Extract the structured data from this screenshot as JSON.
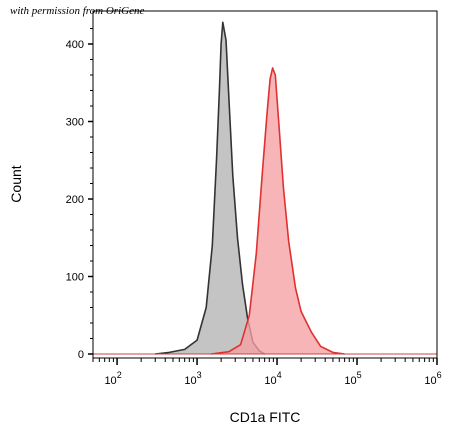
{
  "watermark": "with permission from OriGene",
  "chart_data": {
    "type": "area",
    "title": "",
    "xlabel": "CD1a FITC",
    "ylabel": "Count",
    "x_scale": "log",
    "xlim": [
      50,
      1000000
    ],
    "ylim": [
      0,
      440
    ],
    "x_ticks": [
      {
        "value": 100,
        "mantissa": "10",
        "exp": "2"
      },
      {
        "value": 1000,
        "mantissa": "10",
        "exp": "3"
      },
      {
        "value": 10000,
        "mantissa": "10",
        "exp": "4"
      },
      {
        "value": 100000,
        "mantissa": "10",
        "exp": "5"
      },
      {
        "value": 1000000,
        "mantissa": "10",
        "exp": "6"
      }
    ],
    "y_ticks": [
      0,
      100,
      200,
      300,
      400
    ],
    "grid": false,
    "series": [
      {
        "color": "#808080",
        "fill": "#b4b4b4",
        "stroke": "#333333",
        "points": [
          [
            300,
            0
          ],
          [
            450,
            2
          ],
          [
            700,
            6
          ],
          [
            1000,
            18
          ],
          [
            1300,
            60
          ],
          [
            1550,
            140
          ],
          [
            1750,
            250
          ],
          [
            1900,
            340
          ],
          [
            2000,
            400
          ],
          [
            2100,
            428
          ],
          [
            2300,
            405
          ],
          [
            2500,
            330
          ],
          [
            2800,
            230
          ],
          [
            3200,
            150
          ],
          [
            3700,
            90
          ],
          [
            4300,
            45
          ],
          [
            5000,
            15
          ],
          [
            6000,
            4
          ],
          [
            7000,
            0
          ]
        ]
      },
      {
        "color": "#e83c3c",
        "fill": "#f6a0a4",
        "stroke": "#e03030",
        "points": [
          [
            1500,
            0
          ],
          [
            2500,
            3
          ],
          [
            3500,
            12
          ],
          [
            4500,
            50
          ],
          [
            5500,
            130
          ],
          [
            6500,
            230
          ],
          [
            7500,
            310
          ],
          [
            8200,
            355
          ],
          [
            8800,
            369
          ],
          [
            9500,
            360
          ],
          [
            10500,
            300
          ],
          [
            12000,
            215
          ],
          [
            14000,
            145
          ],
          [
            17000,
            85
          ],
          [
            20000,
            55
          ],
          [
            23000,
            42
          ],
          [
            27000,
            28
          ],
          [
            35000,
            10
          ],
          [
            50000,
            2
          ],
          [
            70000,
            0
          ]
        ]
      }
    ]
  }
}
